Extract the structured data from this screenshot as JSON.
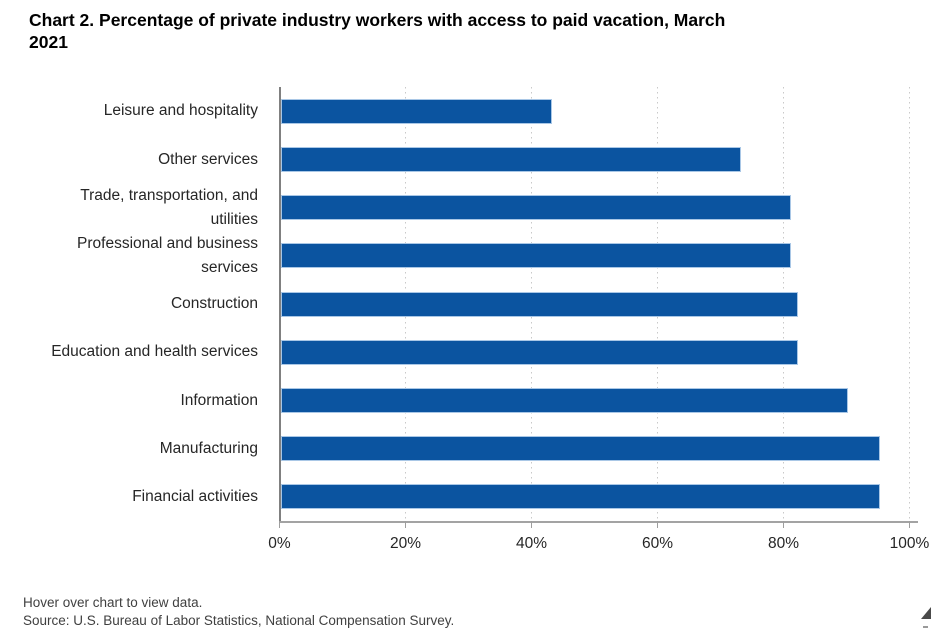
{
  "title_lines": [
    "Chart 2. Percentage of private industry workers with access to paid vacation, March",
    "2021"
  ],
  "chart_data": {
    "type": "bar",
    "orientation": "horizontal",
    "title": "Chart 2. Percentage of private industry workers with access to paid vacation, March 2021",
    "categories": [
      "Leisure and hospitality",
      "Other services",
      "Trade, transportation, and utilities",
      "Professional and business services",
      "Construction",
      "Education and health services",
      "Information",
      "Manufacturing",
      "Financial activities"
    ],
    "values": [
      43,
      73,
      81,
      81,
      82,
      82,
      90,
      95,
      95
    ],
    "unit": "%",
    "xlabel": "",
    "ylabel": "",
    "xlim": [
      0,
      100
    ],
    "x_ticks": [
      0,
      20,
      40,
      60,
      80,
      100
    ],
    "x_tick_labels": [
      "0%",
      "20%",
      "40%",
      "60%",
      "80%",
      "100%"
    ],
    "grid": "vertical-dotted",
    "legend": "none"
  },
  "category_label_lines": [
    [
      "Leisure and hospitality"
    ],
    [
      "Other services"
    ],
    [
      "Trade, transportation, and",
      "utilities"
    ],
    [
      "Professional and business",
      "services"
    ],
    [
      "Construction"
    ],
    [
      "Education and health services"
    ],
    [
      "Information"
    ],
    [
      "Manufacturing"
    ],
    [
      "Financial activities"
    ]
  ],
  "footer": {
    "hover_note": "Hover over chart to view data.",
    "source": "Source: U.S. Bureau of Labor Statistics, National Compensation Survey."
  },
  "icons": {
    "corner_glyph": "resize-corner-triangle"
  },
  "colors": {
    "bar_fill": "#0b54a0",
    "bar_border": "#a9c7e6",
    "y_axis_line": "#808080",
    "x_axis_line": "#a3a3a3",
    "tick_mark": "#9e9e9e",
    "gridline": "#c9c9c9",
    "title_text": "#000000",
    "label_text": "#262626",
    "footer_text": "#404040",
    "background": "#ffffff"
  }
}
